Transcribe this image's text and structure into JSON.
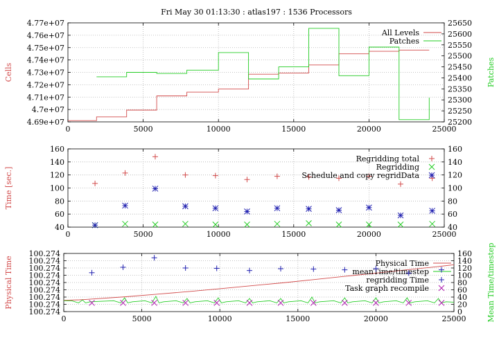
{
  "title": "Fri May 30 01:13:30 : atlas197 : 1536 Processors",
  "colors": {
    "red": "#d24a4a",
    "green": "#22cc22",
    "blue": "#2020b0",
    "purple": "#b020b0",
    "grid": "#b0b0b0"
  },
  "chart_data": [
    {
      "type": "line",
      "step": true,
      "ylabel": "Cells",
      "y2label": "Patches",
      "xlim": [
        0,
        25000
      ],
      "ylim": [
        46900000,
        47700000
      ],
      "y2lim": [
        25200,
        25650
      ],
      "xticks": [
        "0",
        "5000",
        "10000",
        "15000",
        "20000",
        "25000"
      ],
      "yticks": [
        "4.69e+07",
        "4.7e+07",
        "4.71e+07",
        "4.72e+07",
        "4.73e+07",
        "4.74e+07",
        "4.75e+07",
        "4.76e+07",
        "4.77e+07"
      ],
      "y2ticks": [
        "25200",
        "25250",
        "25300",
        "25350",
        "25400",
        "25450",
        "25500",
        "25550",
        "25600",
        "25650"
      ],
      "grid": true,
      "legend_position": "top-right",
      "series": [
        {
          "name": "All Levels",
          "color": "#d24a4a",
          "axis": "left",
          "x": [
            0,
            1900,
            1900,
            3900,
            3900,
            5900,
            5900,
            7900,
            7900,
            10000,
            10000,
            12000,
            12000,
            14000,
            14000,
            16000,
            16000,
            18000,
            18000,
            20000,
            20000,
            22000,
            22000,
            24000
          ],
          "y": [
            46910000,
            46910000,
            46940000,
            46940000,
            46995000,
            46995000,
            47110000,
            47110000,
            47140000,
            47140000,
            47165000,
            47165000,
            47285000,
            47285000,
            47295000,
            47295000,
            47360000,
            47360000,
            47450000,
            47450000,
            47470000,
            47470000,
            47480000,
            47480000
          ]
        },
        {
          "name": "Patches",
          "color": "#22cc22",
          "axis": "right",
          "x": [
            1900,
            3900,
            3900,
            5900,
            5900,
            7900,
            7900,
            10000,
            10000,
            12000,
            12000,
            14000,
            14000,
            16000,
            16000,
            18000,
            18000,
            20000,
            20000,
            22000,
            22000,
            24000,
            24000,
            24000
          ],
          "y": [
            25405,
            25405,
            25425,
            25425,
            25420,
            25420,
            25435,
            25435,
            25515,
            25515,
            25395,
            25395,
            25450,
            25450,
            25625,
            25625,
            25410,
            25410,
            25540,
            25540,
            25210,
            25210,
            25210,
            25310
          ]
        }
      ]
    },
    {
      "type": "scatter",
      "ylabel": "Time [sec.]",
      "xlim": [
        0,
        25000
      ],
      "ylim": [
        40,
        160
      ],
      "y2lim": [
        40,
        160
      ],
      "xticks": [
        "0",
        "5000",
        "10000",
        "15000",
        "20000",
        "25000"
      ],
      "yticks": [
        "40",
        "60",
        "80",
        "100",
        "120",
        "140",
        "160"
      ],
      "y2ticks": [
        "40",
        "60",
        "80",
        "100",
        "120",
        "140",
        "160"
      ],
      "grid": true,
      "legend_position": "top-right",
      "series": [
        {
          "name": "Regridding total",
          "color": "#d24a4a",
          "marker": "plus",
          "x": [
            1800,
            3800,
            5800,
            7800,
            9800,
            11900,
            13900,
            16000,
            18000,
            20000,
            22100,
            24200
          ],
          "y": [
            107,
            123,
            148,
            120,
            119,
            113,
            118,
            117,
            115,
            118,
            106,
            115
          ]
        },
        {
          "name": "Regridding",
          "color": "#22cc22",
          "marker": "x",
          "x": [
            1800,
            3800,
            5800,
            7800,
            9800,
            11900,
            13900,
            16000,
            18000,
            20000,
            22100,
            24200
          ],
          "y": [
            43,
            45,
            44,
            45,
            44,
            44,
            45,
            46,
            44,
            44,
            44,
            45
          ]
        },
        {
          "name": "Schedule and copy regridData",
          "color": "#2020b0",
          "marker": "star",
          "x": [
            1800,
            3800,
            5800,
            7800,
            9800,
            11900,
            13900,
            16000,
            18000,
            20000,
            22100,
            24200
          ],
          "y": [
            43,
            73,
            99,
            72,
            69,
            64,
            69,
            68,
            66,
            70,
            58,
            65
          ]
        }
      ]
    },
    {
      "type": "line",
      "ylabel": "Physical Time",
      "y2label": "Mean Time/timestep",
      "xlim": [
        0,
        25000
      ],
      "ylim": [
        0,
        8
      ],
      "y2lim": [
        0,
        160
      ],
      "xticks": [
        "0",
        "5000",
        "10000",
        "15000",
        "20000",
        "25000"
      ],
      "yticks": [
        "100.274",
        "100.274",
        "100.274",
        "100.274",
        "100.274",
        "100.274",
        "100.274",
        "100.274",
        "100.274"
      ],
      "y2ticks": [
        "0",
        "20",
        "40",
        "60",
        "80",
        "100",
        "120",
        "140",
        "160"
      ],
      "grid": true,
      "legend_position": "top-right",
      "series": [
        {
          "name": "Physical Time",
          "color": "#d24a4a",
          "axis": "left",
          "x": [
            0,
            1000,
            2000,
            4000,
            6000,
            8000,
            10000,
            12000,
            14000,
            16000,
            18000,
            20000,
            22000,
            24000,
            25000
          ],
          "y": [
            1.55,
            1.62,
            1.75,
            2.05,
            2.4,
            2.75,
            3.15,
            3.55,
            3.95,
            4.4,
            4.85,
            5.3,
            5.75,
            6.2,
            6.45
          ]
        },
        {
          "name": "meanTime/timestep",
          "color": "#22cc22",
          "axis": "right",
          "peaks_x": [
            1200,
            3900,
            5900,
            7900,
            9900,
            11900,
            13900,
            15900,
            18000,
            20000,
            22000,
            24000
          ],
          "peaks_y": [
            32,
            38,
            42,
            36,
            38,
            36,
            36,
            40,
            38,
            38,
            38,
            36
          ],
          "baseline": 30,
          "trough": 24
        },
        {
          "name": "regridding Time",
          "color": "#2020b0",
          "marker": "plus",
          "axis": "right",
          "x": [
            1800,
            3800,
            5800,
            7800,
            9800,
            11900,
            13900,
            16000,
            18000,
            20000,
            22100,
            24200
          ],
          "y": [
            107,
            122,
            148,
            120,
            119,
            113,
            118,
            117,
            115,
            118,
            106,
            115
          ]
        },
        {
          "name": "Task graph recompile",
          "color": "#b020b0",
          "marker": "x",
          "axis": "right",
          "x": [
            1800,
            3800,
            5800,
            7800,
            9800,
            11900,
            13900,
            16000,
            18000,
            20000,
            22100,
            24200
          ],
          "y": [
            24,
            24,
            24,
            24,
            24,
            24,
            24,
            24,
            24,
            24,
            24,
            24
          ]
        }
      ]
    }
  ]
}
